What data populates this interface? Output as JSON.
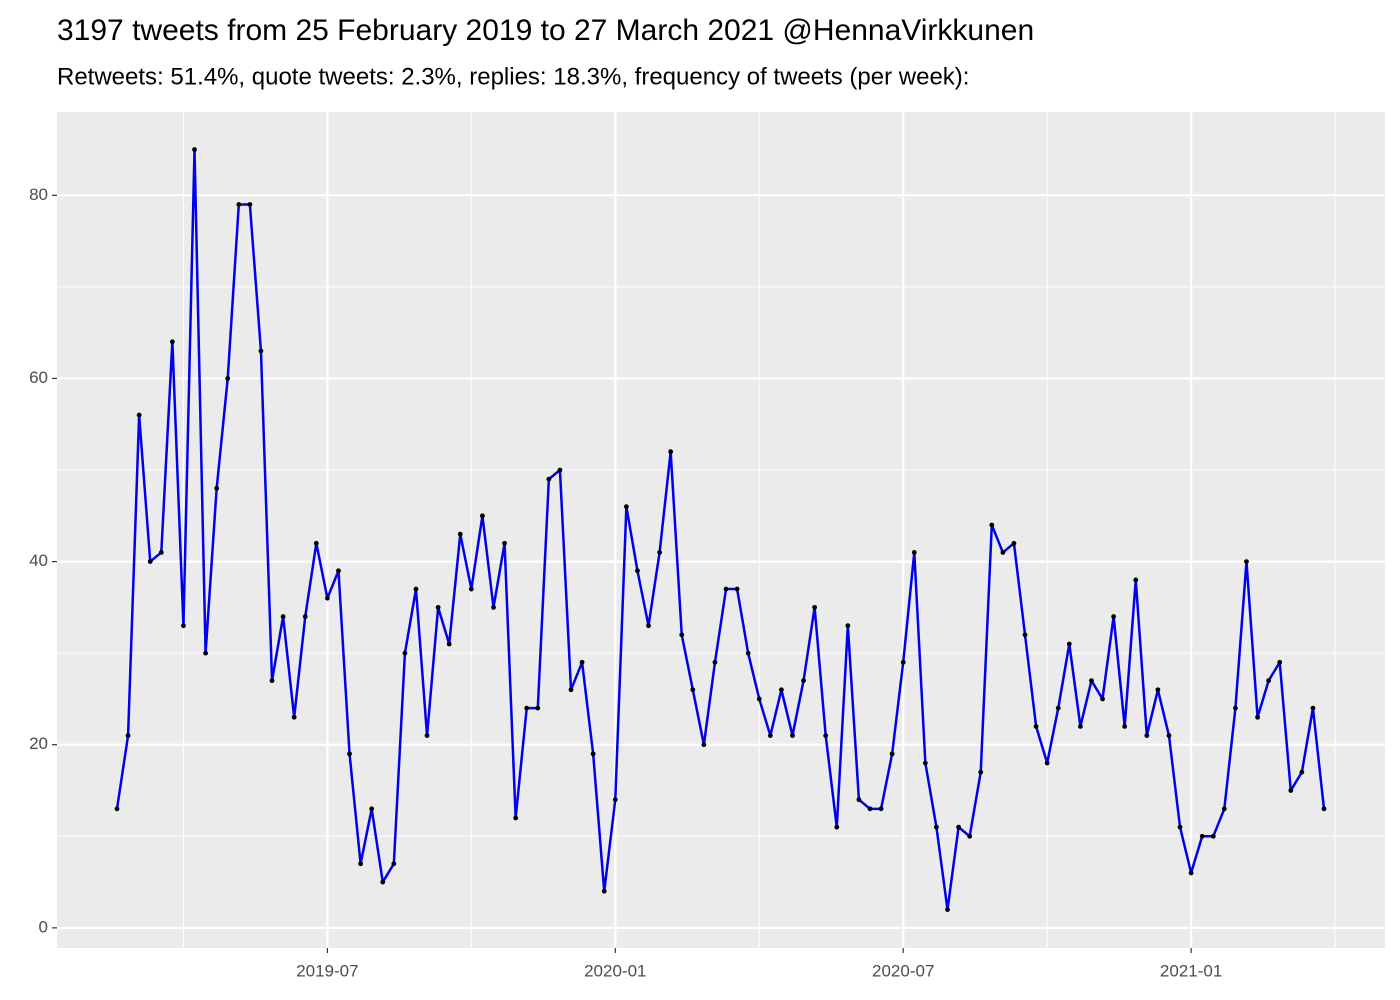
{
  "chart_data": {
    "type": "line",
    "title": "3197 tweets from 25 February 2019 to 27 March 2021 @HennaVirkkunen",
    "subtitle": "Retweets: 51.4%, quote tweets: 2.3%, replies: 18.3%, frequency of tweets (per week):",
    "categories": [
      null,
      null,
      null,
      null,
      null,
      null,
      null,
      null,
      null,
      null,
      null,
      null,
      null,
      null,
      null,
      null,
      null,
      null,
      null,
      "2019-07",
      null,
      null,
      null,
      null,
      null,
      null,
      null,
      null,
      null,
      null,
      null,
      null,
      null,
      null,
      null,
      null,
      null,
      null,
      null,
      null,
      null,
      null,
      null,
      null,
      null,
      "2020-01",
      null,
      null,
      null,
      null,
      null,
      null,
      null,
      null,
      null,
      null,
      null,
      null,
      null,
      null,
      null,
      null,
      null,
      null,
      null,
      null,
      null,
      null,
      null,
      null,
      null,
      "2020-07",
      null,
      null,
      null,
      null,
      null,
      null,
      null,
      null,
      null,
      null,
      null,
      null,
      null,
      null,
      null,
      null,
      null,
      null,
      null,
      null,
      null,
      null,
      null,
      null,
      null,
      "2021-01",
      null,
      null,
      null,
      null,
      null,
      null,
      null,
      null,
      null,
      null,
      null,
      null
    ],
    "series": [
      {
        "color": "#0000ee",
        "marker_color": "#000000",
        "values": [
          13,
          21,
          56,
          40,
          41,
          64,
          33,
          85,
          30,
          48,
          60,
          79,
          79,
          63,
          27,
          34,
          23,
          34,
          42,
          36,
          39,
          19,
          7,
          13,
          5,
          7,
          30,
          37,
          21,
          35,
          31,
          43,
          37,
          45,
          35,
          42,
          12,
          24,
          24,
          49,
          50,
          26,
          29,
          19,
          4,
          14,
          46,
          39,
          33,
          41,
          52,
          32,
          26,
          20,
          29,
          37,
          37,
          30,
          25,
          21,
          26,
          21,
          27,
          35,
          21,
          11,
          33,
          14,
          13,
          13,
          19,
          29,
          41,
          18,
          11,
          2,
          11,
          10,
          17,
          44,
          41,
          42,
          32,
          22,
          18,
          24,
          31,
          22,
          27,
          25,
          34,
          22,
          38,
          21,
          26,
          21,
          11,
          6,
          10,
          10,
          13,
          24,
          40,
          23,
          27,
          29,
          15,
          17,
          24,
          13
        ]
      }
    ],
    "ylim": [
      -2.2,
      89.1
    ],
    "yticks": [
      0,
      20,
      40,
      60,
      80
    ],
    "grid": true
  }
}
